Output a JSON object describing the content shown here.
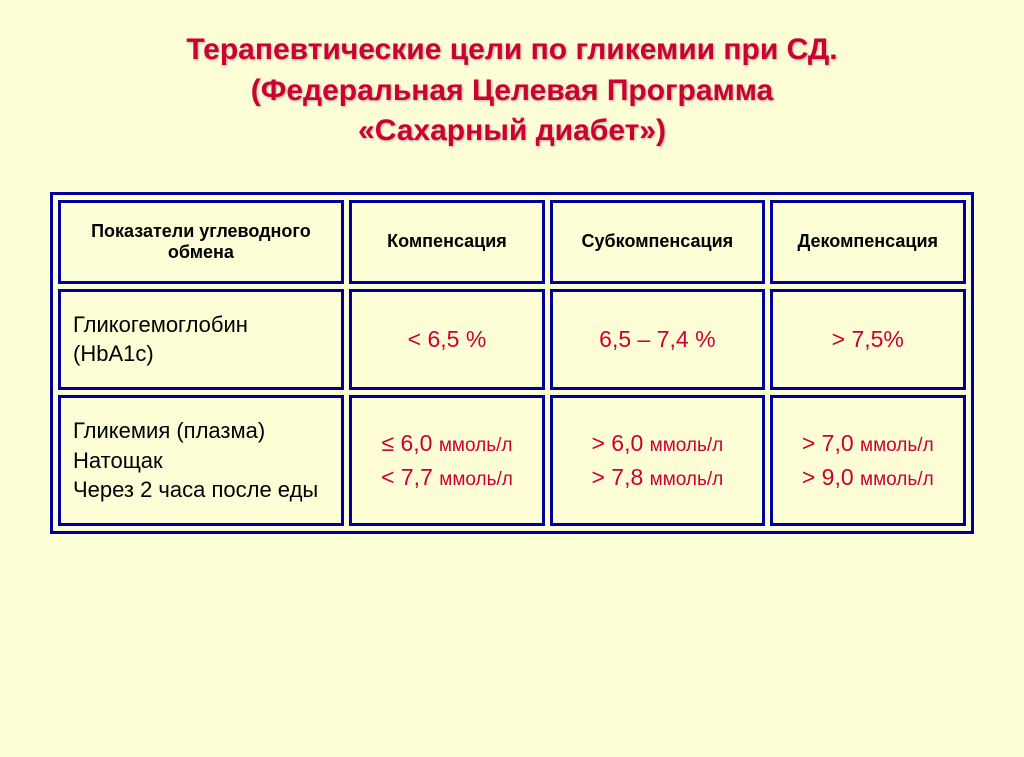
{
  "title": {
    "line1": "Терапевтические цели по гликемии при СД.",
    "line2": "(Федеральная Целевая Программа",
    "line3": "«Сахарный диабет»)"
  },
  "table": {
    "headers": {
      "param": "Показатели углеводного обмена",
      "comp": "Компенсация",
      "subcomp": "Субкомпенсация",
      "decomp": "Декомпенсация"
    },
    "rows": [
      {
        "param": "Гликогемоглобин (HbA1c)",
        "comp": "< 6,5 %",
        "subcomp": "6,5 – 7,4 %",
        "decomp": "> 7,5%"
      },
      {
        "param_l1": "Гликемия (плазма)",
        "param_l2": "Натощак",
        "param_l3": "Через 2 часа после еды",
        "comp_l1_prefix": "≤ 6,0 ",
        "comp_l1_unit": "ммоль/л",
        "comp_l2_prefix": "< 7,7 ",
        "comp_l2_unit": "ммоль/л",
        "subcomp_l1_prefix": "> 6,0 ",
        "subcomp_l1_unit": "ммоль/л",
        "subcomp_l2_prefix": "> 7,8 ",
        "subcomp_l2_unit": "ммоль/л",
        "decomp_l1_prefix": "> 7,0 ",
        "decomp_l1_unit": "ммоль/л",
        "decomp_l2_prefix": "> 9,0 ",
        "decomp_l2_unit": "ммоль/л"
      }
    ]
  },
  "style": {
    "background_color": "#fdfdd6",
    "title_color": "#cc0033",
    "border_color": "#000099",
    "value_color": "#cc0033",
    "text_color": "#000000",
    "title_fontsize": 30,
    "header_fontsize": 18,
    "param_fontsize": 22,
    "value_fontsize": 23,
    "unit_fontsize": 19,
    "border_width": 3,
    "cell_spacing": 5
  }
}
